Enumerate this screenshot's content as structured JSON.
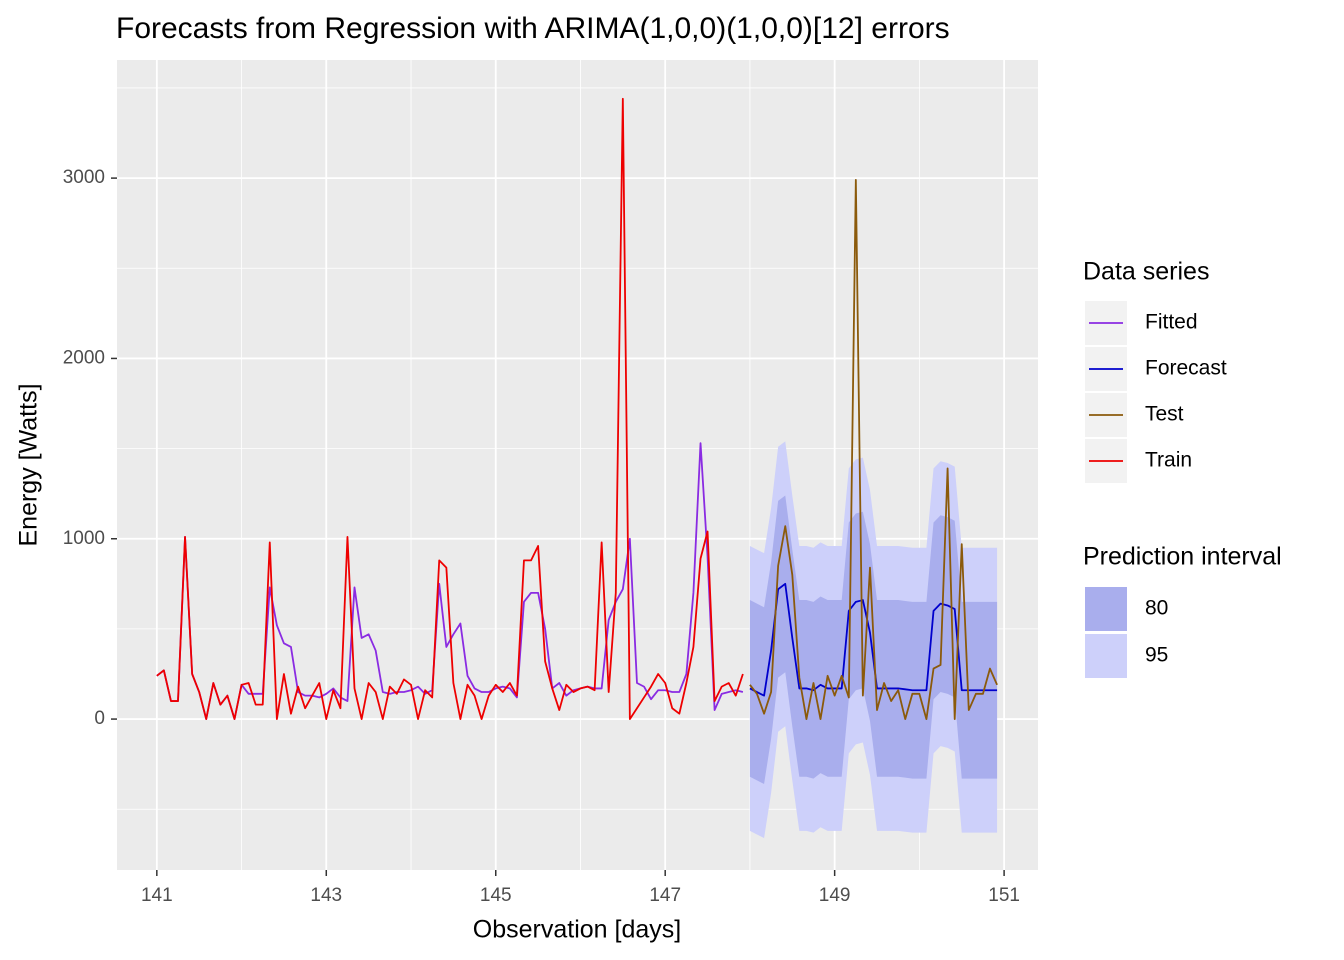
{
  "chart_data": {
    "type": "line",
    "title": "Forecasts from Regression with ARIMA(1,0,0)(1,0,0)[12] errors",
    "x_label": "Observation [days]",
    "y_label": "Energy [Watts]",
    "xlim": [
      140.53,
      151.4
    ],
    "ylim": [
      -837,
      3655
    ],
    "xticks": [
      141,
      143,
      145,
      147,
      149,
      151
    ],
    "yticks": [
      0,
      1000,
      2000,
      3000
    ],
    "x_minor_ticks": [
      142,
      144,
      146,
      148,
      150
    ],
    "y_minor_ticks": [
      -500,
      500,
      1500,
      2500,
      3500
    ],
    "grid": true,
    "legend_title": "Data series",
    "interval_legend_title": "Prediction interval",
    "series": [
      {
        "name": "Fitted",
        "color": "#8a2be2",
        "x": [
          141,
          141.083,
          141.167,
          141.25,
          141.333,
          141.417,
          141.5,
          141.583,
          141.667,
          141.75,
          141.833,
          141.917,
          142,
          142.083,
          142.167,
          142.25,
          142.333,
          142.417,
          142.5,
          142.583,
          142.667,
          142.75,
          142.833,
          142.917,
          143,
          143.083,
          143.167,
          143.25,
          143.333,
          143.417,
          143.5,
          143.583,
          143.667,
          143.75,
          143.833,
          143.917,
          144,
          144.083,
          144.167,
          144.25,
          144.333,
          144.417,
          144.5,
          144.583,
          144.667,
          144.75,
          144.833,
          144.917,
          145,
          145.083,
          145.167,
          145.25,
          145.333,
          145.417,
          145.5,
          145.583,
          145.667,
          145.75,
          145.833,
          145.917,
          146,
          146.083,
          146.167,
          146.25,
          146.333,
          146.417,
          146.5,
          146.583,
          146.667,
          146.75,
          146.833,
          146.917,
          147,
          147.083,
          147.167,
          147.25,
          147.333,
          147.417,
          147.5,
          147.583,
          147.667,
          147.75,
          147.833,
          147.917
        ],
        "values": [
          240,
          270,
          100,
          100,
          1010,
          250,
          150,
          0,
          200,
          80,
          130,
          0,
          190,
          140,
          140,
          140,
          730,
          520,
          420,
          400,
          150,
          130,
          130,
          120,
          140,
          170,
          120,
          100,
          730,
          450,
          470,
          380,
          150,
          140,
          150,
          150,
          160,
          180,
          140,
          160,
          750,
          400,
          470,
          530,
          240,
          170,
          150,
          150,
          170,
          180,
          170,
          120,
          650,
          700,
          700,
          500,
          170,
          200,
          130,
          160,
          170,
          180,
          170,
          170,
          550,
          650,
          720,
          1000,
          200,
          180,
          110,
          160,
          160,
          150,
          150,
          250,
          700,
          1530,
          900,
          50,
          140,
          150,
          160,
          150
        ]
      },
      {
        "name": "Forecast",
        "color": "#0000cc",
        "x": [
          148,
          148.083,
          148.167,
          148.25,
          148.333,
          148.417,
          148.5,
          148.583,
          148.667,
          148.75,
          148.833,
          148.917,
          149,
          149.083,
          149.167,
          149.25,
          149.333,
          149.417,
          149.5,
          149.583,
          149.667,
          149.75,
          149.833,
          149.917,
          150,
          150.083,
          150.167,
          150.25,
          150.333,
          150.417,
          150.5,
          150.583,
          150.667,
          150.75,
          150.833,
          150.917
        ],
        "values": [
          170,
          150,
          130,
          380,
          720,
          750,
          450,
          170,
          170,
          160,
          190,
          170,
          170,
          170,
          600,
          650,
          660,
          480,
          170,
          170,
          170,
          170,
          165,
          160,
          160,
          160,
          600,
          640,
          630,
          610,
          160,
          160,
          160,
          160,
          160,
          160
        ]
      },
      {
        "name": "Test",
        "color": "#8b5a0b",
        "x": [
          148,
          148.083,
          148.167,
          148.25,
          148.333,
          148.417,
          148.5,
          148.583,
          148.667,
          148.75,
          148.833,
          148.917,
          149,
          149.083,
          149.167,
          149.25,
          149.333,
          149.417,
          149.5,
          149.583,
          149.667,
          149.75,
          149.833,
          149.917,
          150,
          150.083,
          150.167,
          150.25,
          150.333,
          150.417,
          150.5,
          150.583,
          150.667,
          150.75,
          150.833,
          150.917
        ],
        "values": [
          190,
          140,
          30,
          150,
          850,
          1070,
          800,
          230,
          0,
          200,
          0,
          240,
          130,
          240,
          120,
          2990,
          130,
          840,
          50,
          200,
          100,
          160,
          0,
          140,
          140,
          0,
          280,
          300,
          1390,
          0,
          970,
          50,
          140,
          140,
          280,
          190
        ]
      },
      {
        "name": "Train",
        "color": "#ee0000",
        "x": [
          141,
          141.083,
          141.167,
          141.25,
          141.333,
          141.417,
          141.5,
          141.583,
          141.667,
          141.75,
          141.833,
          141.917,
          142,
          142.083,
          142.167,
          142.25,
          142.333,
          142.417,
          142.5,
          142.583,
          142.667,
          142.75,
          142.833,
          142.917,
          143,
          143.083,
          143.167,
          143.25,
          143.333,
          143.417,
          143.5,
          143.583,
          143.667,
          143.75,
          143.833,
          143.917,
          144,
          144.083,
          144.167,
          144.25,
          144.333,
          144.417,
          144.5,
          144.583,
          144.667,
          144.75,
          144.833,
          144.917,
          145,
          145.083,
          145.167,
          145.25,
          145.333,
          145.417,
          145.5,
          145.583,
          145.667,
          145.75,
          145.833,
          145.917,
          146,
          146.083,
          146.167,
          146.25,
          146.333,
          146.417,
          146.5,
          146.583,
          146.667,
          146.75,
          146.833,
          146.917,
          147,
          147.083,
          147.167,
          147.25,
          147.333,
          147.417,
          147.5,
          147.583,
          147.667,
          147.75,
          147.833,
          147.917
        ],
        "values": [
          240,
          270,
          100,
          100,
          1010,
          250,
          150,
          0,
          200,
          80,
          130,
          0,
          190,
          200,
          80,
          80,
          980,
          0,
          250,
          30,
          180,
          60,
          130,
          200,
          0,
          160,
          60,
          1010,
          170,
          0,
          200,
          150,
          0,
          180,
          140,
          220,
          190,
          0,
          160,
          120,
          880,
          840,
          200,
          0,
          190,
          130,
          0,
          130,
          190,
          150,
          200,
          130,
          880,
          880,
          960,
          320,
          170,
          50,
          190,
          150,
          170,
          180,
          160,
          980,
          150,
          700,
          3440,
          0,
          60,
          120,
          180,
          250,
          200,
          60,
          30,
          200,
          400,
          890,
          1040,
          100,
          180,
          200,
          130,
          250
        ]
      }
    ],
    "intervals": [
      {
        "name": "80",
        "color": "#a9aeed",
        "x": [
          148,
          148.083,
          148.167,
          148.25,
          148.333,
          148.417,
          148.5,
          148.583,
          148.667,
          148.75,
          148.833,
          148.917,
          149,
          149.083,
          149.167,
          149.25,
          149.333,
          149.417,
          149.5,
          149.583,
          149.667,
          149.75,
          149.833,
          149.917,
          150,
          150.083,
          150.167,
          150.25,
          150.333,
          150.417,
          150.5,
          150.583,
          150.667,
          150.75,
          150.833,
          150.917
        ],
        "lower": [
          -320,
          -340,
          -360,
          -110,
          230,
          260,
          -40,
          -320,
          -320,
          -330,
          -300,
          -320,
          -320,
          -320,
          110,
          160,
          170,
          -10,
          -320,
          -320,
          -320,
          -320,
          -325,
          -330,
          -330,
          -330,
          110,
          150,
          140,
          120,
          -330,
          -330,
          -330,
          -330,
          -330,
          -330
        ],
        "upper": [
          660,
          640,
          620,
          870,
          1210,
          1240,
          940,
          660,
          660,
          650,
          680,
          660,
          660,
          660,
          1090,
          1140,
          1150,
          970,
          660,
          660,
          660,
          660,
          655,
          650,
          650,
          650,
          1090,
          1130,
          1120,
          1100,
          650,
          650,
          650,
          650,
          650,
          650
        ]
      },
      {
        "name": "95",
        "color": "#cdd0fa",
        "x": [
          148,
          148.083,
          148.167,
          148.25,
          148.333,
          148.417,
          148.5,
          148.583,
          148.667,
          148.75,
          148.833,
          148.917,
          149,
          149.083,
          149.167,
          149.25,
          149.333,
          149.417,
          149.5,
          149.583,
          149.667,
          149.75,
          149.833,
          149.917,
          150,
          150.083,
          150.167,
          150.25,
          150.333,
          150.417,
          150.5,
          150.583,
          150.667,
          150.75,
          150.833,
          150.917
        ],
        "lower": [
          -620,
          -640,
          -660,
          -410,
          -70,
          -40,
          -340,
          -620,
          -620,
          -630,
          -600,
          -620,
          -620,
          -620,
          -190,
          -140,
          -130,
          -310,
          -620,
          -620,
          -620,
          -620,
          -625,
          -630,
          -630,
          -630,
          -190,
          -150,
          -160,
          -180,
          -630,
          -630,
          -630,
          -630,
          -630,
          -630
        ],
        "upper": [
          960,
          940,
          920,
          1170,
          1510,
          1540,
          1240,
          960,
          960,
          950,
          980,
          960,
          960,
          960,
          1390,
          1440,
          1450,
          1270,
          960,
          960,
          960,
          960,
          955,
          950,
          950,
          950,
          1390,
          1430,
          1420,
          1400,
          950,
          950,
          950,
          950,
          950,
          950
        ]
      }
    ]
  }
}
